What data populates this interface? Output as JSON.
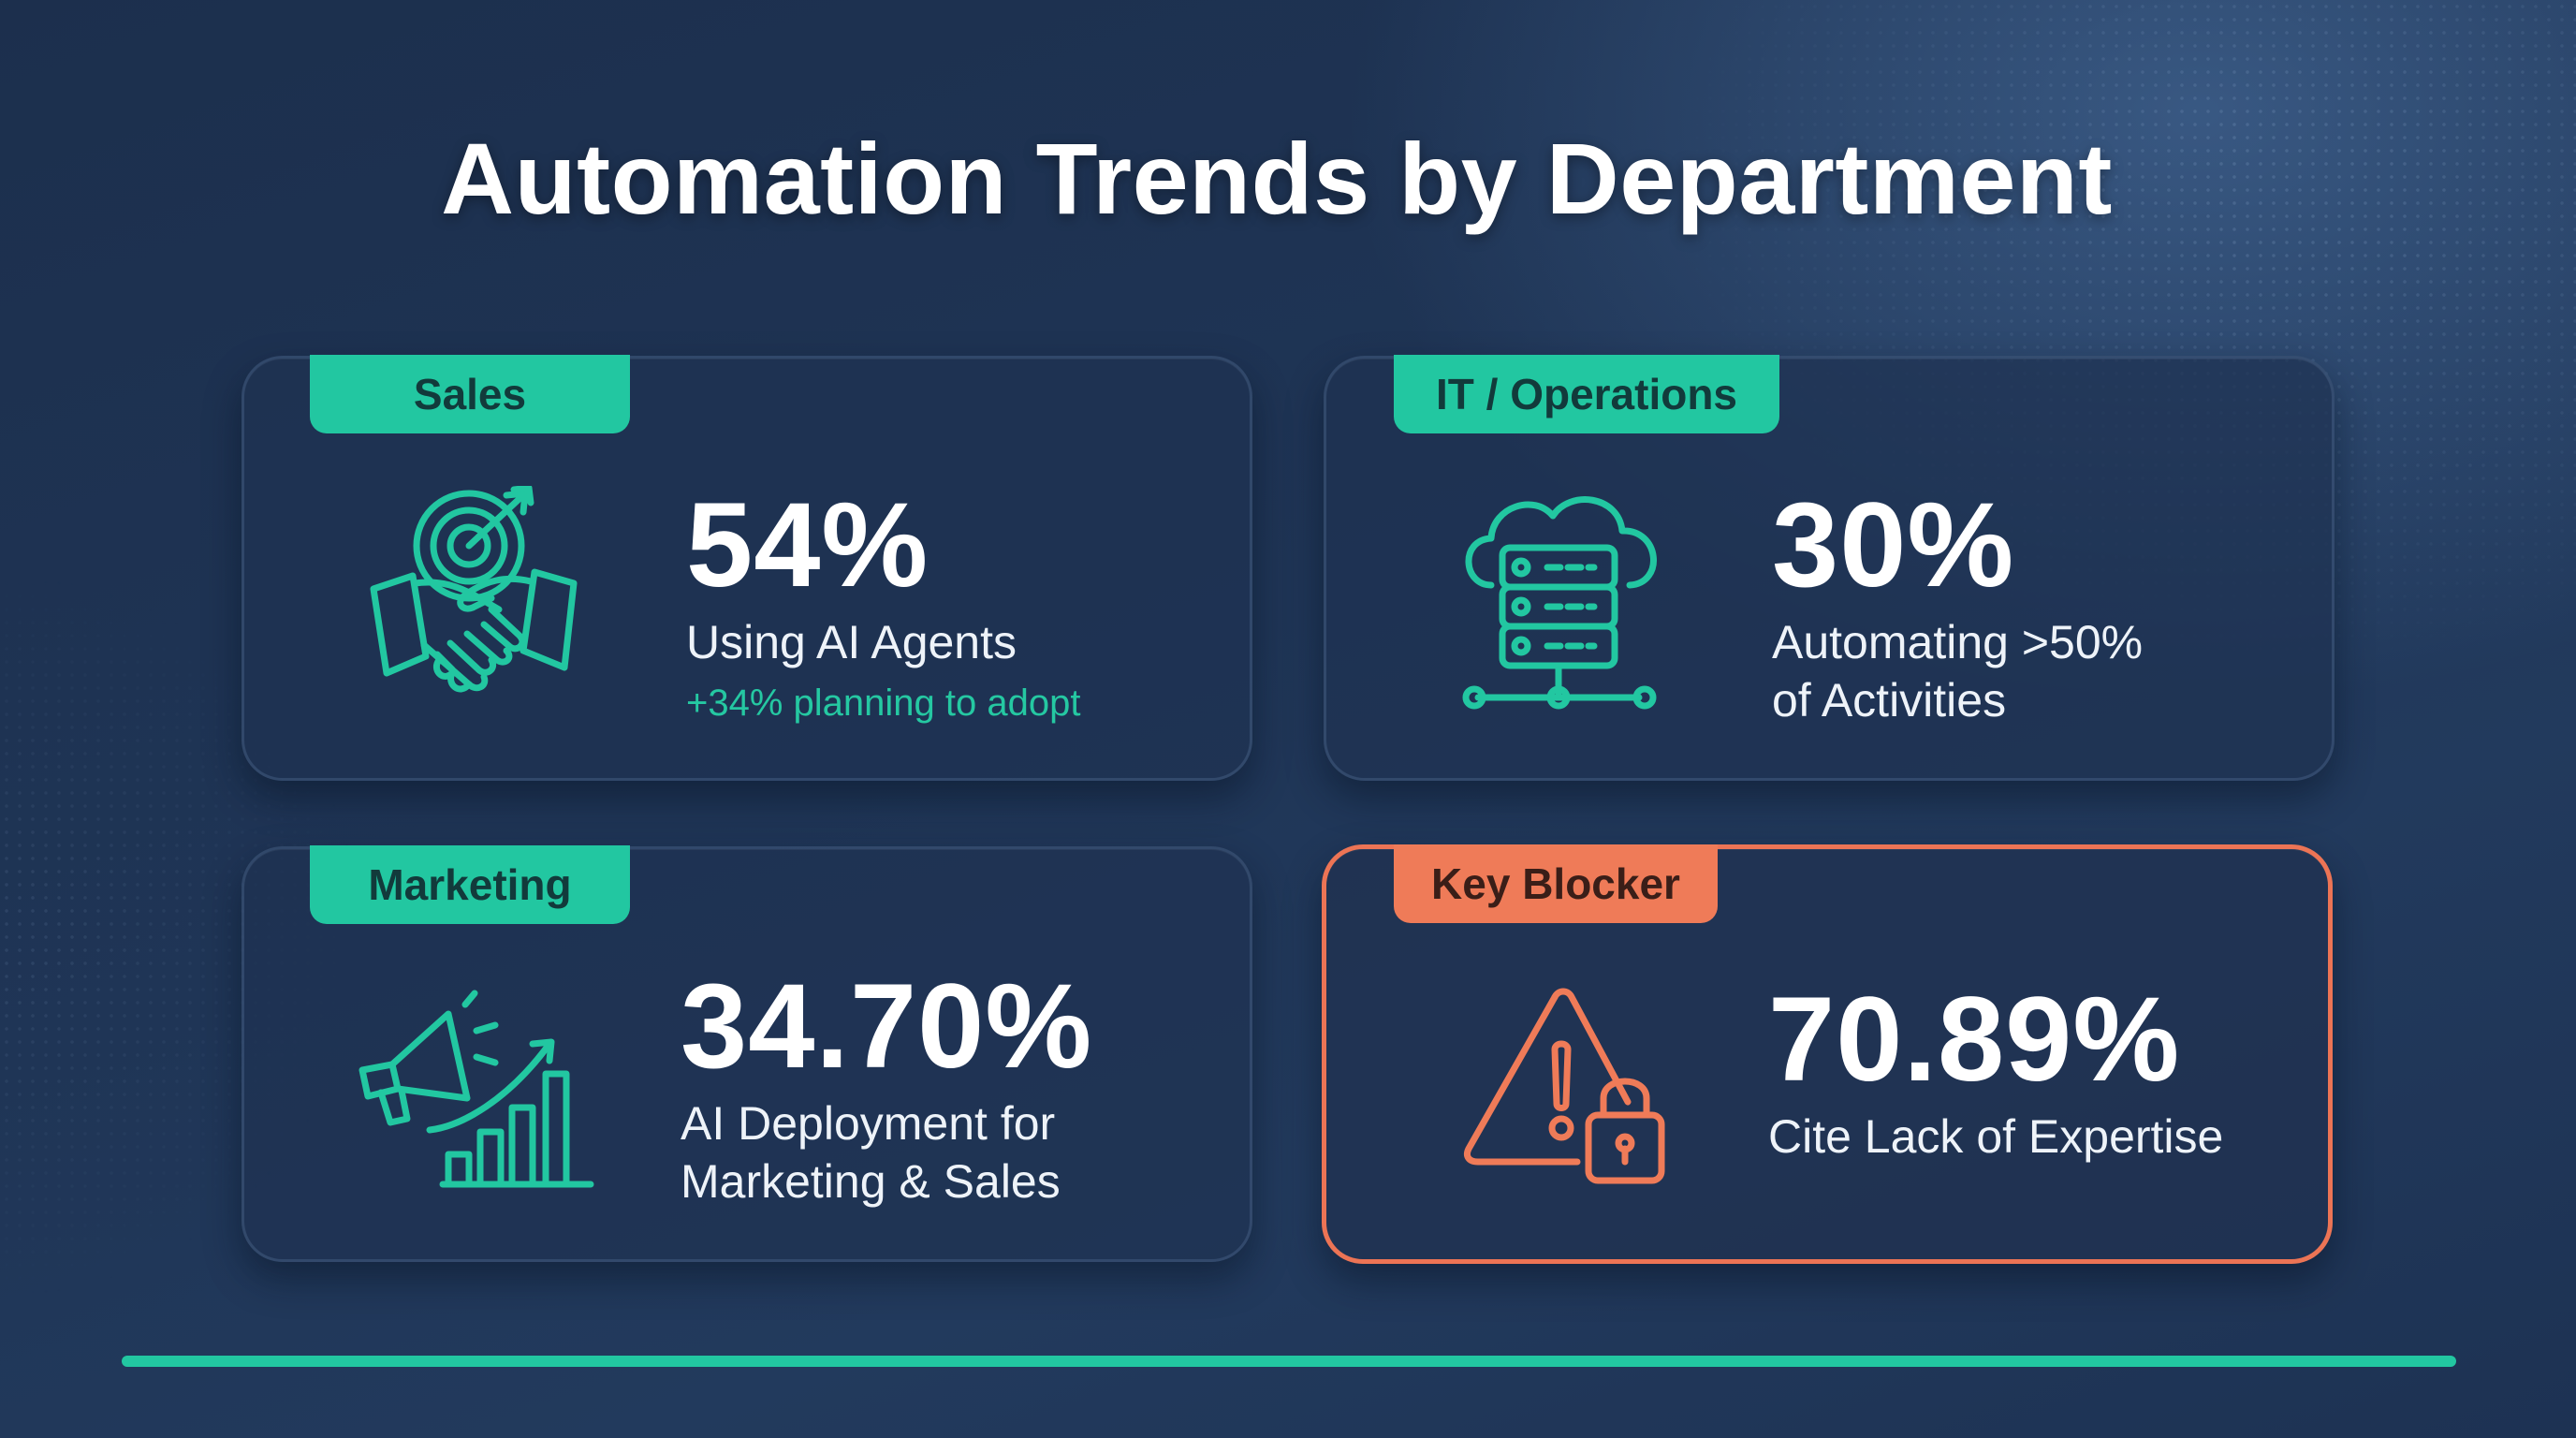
{
  "title": "Automation Trends by Department",
  "colors": {
    "accent": "#22c7a1",
    "alert": "#ef7b58",
    "background": "#1f3556"
  },
  "cards": [
    {
      "tag": "Sales",
      "icon": "target-handshake-icon",
      "value": "54%",
      "label_lines": [
        "Using AI Agents"
      ],
      "sublabel": "+34% planning to adopt"
    },
    {
      "tag": "IT / Operations",
      "icon": "cloud-server-icon",
      "value": "30%",
      "label_lines": [
        "Automating >50%",
        "of Activities"
      ]
    },
    {
      "tag": "Marketing",
      "icon": "megaphone-growth-chart-icon",
      "value": "34.70%",
      "label_lines": [
        "AI Deployment for",
        "Marketing & Sales"
      ]
    },
    {
      "tag": "Key Blocker",
      "icon": "warning-lock-icon",
      "value": "70.89%",
      "label_lines": [
        "Cite Lack of Expertise"
      ]
    }
  ]
}
